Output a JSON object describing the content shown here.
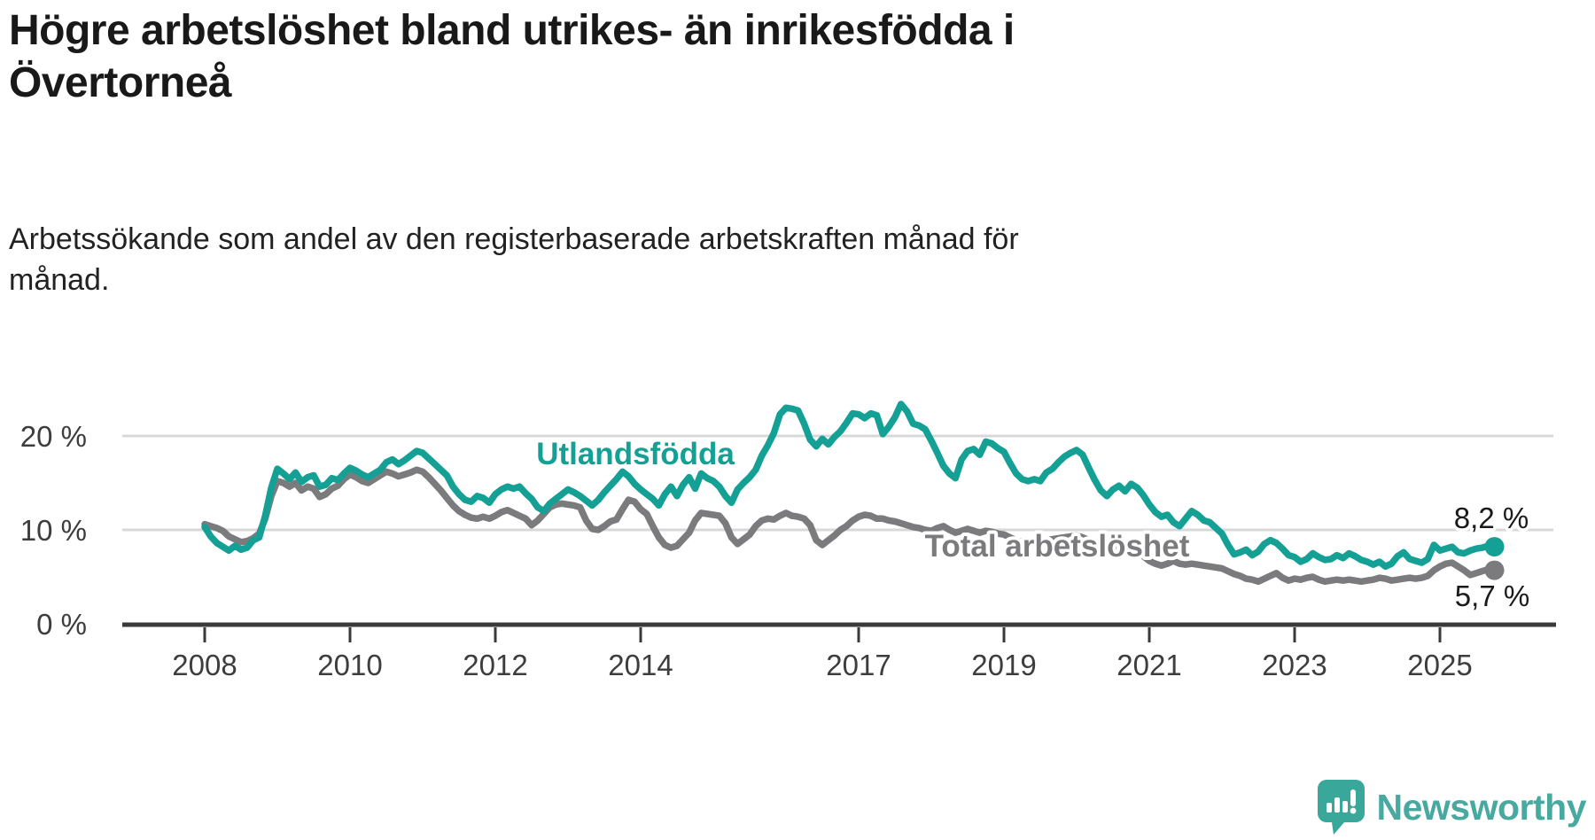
{
  "header": {
    "title": "Högre arbetslöshet bland utrikes- än inrikesfödda i Övertorneå",
    "subtitle": "Arbetssökande som andel av den registerbaserade arbetskraften månad för månad."
  },
  "footer": {
    "brand": "Newsworthy",
    "icon": "bar-chart-exclamation-speech-bubble"
  },
  "colors": {
    "foreign_born": "#14a095",
    "total": "#7b7b7d",
    "axis": "#3a3a3a",
    "tick_text": "#3d3d3d",
    "gridline": "#d8d8d8",
    "end_label_text": "#1a1a1a",
    "logo_icon": "#3aa79b",
    "logo_text": "#48a9a0"
  },
  "chart_data": {
    "type": "line",
    "title": "Högre arbetslöshet bland utrikes- än inrikesfödda i Övertorneå",
    "subtitle": "Arbetssökande som andel av den registerbaserade arbetskraften månad för månad.",
    "xlabel": "",
    "ylabel": "",
    "grid": "horizontal-only",
    "legend_position": "inline-labels",
    "x_ticks": [
      2008,
      2010,
      2012,
      2014,
      2017,
      2019,
      2021,
      2023,
      2025
    ],
    "y_ticks": [
      {
        "value": 0,
        "label": "0 %"
      },
      {
        "value": 10,
        "label": "10 %"
      },
      {
        "value": 20,
        "label": "20 %"
      }
    ],
    "ylim": [
      0,
      26
    ],
    "xlim_years": [
      2008.0,
      2026.0
    ],
    "frequency": "monthly",
    "series": [
      {
        "name": "Total arbetslöshet",
        "inline_label": "Total arbetslöshet",
        "end_label": "5,7 %",
        "end_value": 5.7,
        "color": "#7b7b7d",
        "start_year": 2008,
        "values": [
          10.6,
          10.4,
          10.2,
          9.9,
          9.3,
          9.0,
          8.7,
          8.8,
          9.1,
          9.6,
          11.2,
          13.6,
          15.2,
          15.0,
          14.6,
          15.0,
          14.2,
          14.6,
          14.4,
          13.5,
          13.8,
          14.4,
          14.7,
          15.4,
          15.9,
          15.6,
          15.2,
          15.0,
          15.4,
          15.8,
          16.2,
          16.0,
          15.7,
          15.9,
          16.1,
          16.4,
          16.2,
          15.6,
          14.9,
          14.2,
          13.4,
          12.6,
          12.0,
          11.6,
          11.3,
          11.2,
          11.4,
          11.2,
          11.5,
          11.9,
          12.1,
          11.8,
          11.5,
          11.2,
          10.5,
          11.0,
          11.7,
          12.4,
          12.7,
          12.8,
          12.7,
          12.6,
          12.4,
          11.0,
          10.1,
          10.0,
          10.4,
          10.9,
          11.1,
          12.2,
          13.2,
          13.0,
          12.2,
          11.7,
          10.4,
          9.2,
          8.4,
          8.1,
          8.3,
          9.0,
          9.7,
          11.0,
          11.8,
          11.7,
          11.6,
          11.5,
          10.7,
          9.2,
          8.5,
          9.0,
          9.5,
          10.4,
          11.0,
          11.2,
          11.1,
          11.5,
          11.8,
          11.5,
          11.4,
          11.2,
          10.5,
          8.9,
          8.4,
          8.9,
          9.4,
          10.0,
          10.4,
          11.0,
          11.4,
          11.6,
          11.5,
          11.2,
          11.2,
          11.0,
          10.9,
          10.7,
          10.5,
          10.3,
          10.2,
          10.0,
          9.9,
          10.2,
          10.4,
          10.0,
          9.7,
          9.9,
          10.1,
          9.9,
          9.7,
          9.9,
          9.8,
          9.6,
          9.5,
          9.2,
          8.9,
          8.7,
          8.6,
          8.7,
          8.8,
          8.9,
          9.0,
          9.1,
          9.2,
          9.3,
          9.4,
          9.2,
          8.9,
          8.6,
          8.3,
          8.1,
          8.2,
          8.3,
          8.1,
          8.0,
          7.7,
          7.2,
          6.7,
          6.4,
          6.2,
          6.4,
          6.7,
          6.4,
          6.3,
          6.4,
          6.3,
          6.2,
          6.1,
          6.0,
          5.9,
          5.6,
          5.3,
          5.1,
          4.8,
          4.7,
          4.5,
          4.8,
          5.1,
          5.4,
          4.9,
          4.6,
          4.8,
          4.7,
          4.9,
          5.0,
          4.7,
          4.5,
          4.6,
          4.7,
          4.6,
          4.7,
          4.6,
          4.5,
          4.6,
          4.7,
          4.9,
          4.8,
          4.6,
          4.7,
          4.8,
          4.9,
          4.8,
          4.9,
          5.1,
          5.7,
          6.1,
          6.4,
          6.5,
          6.1,
          5.7,
          5.2,
          5.4,
          5.6,
          5.8,
          5.7
        ]
      },
      {
        "name": "Utlandsfödda",
        "inline_label": "Utlandsfödda",
        "end_label": "8,2 %",
        "end_value": 8.2,
        "color": "#14a095",
        "start_year": 2008,
        "values": [
          10.3,
          9.3,
          8.6,
          8.2,
          7.8,
          8.3,
          7.9,
          8.1,
          8.9,
          9.2,
          11.5,
          14.5,
          16.5,
          16.0,
          15.4,
          16.1,
          15.1,
          15.6,
          15.8,
          14.6,
          14.8,
          15.5,
          15.3,
          16.0,
          16.6,
          16.3,
          15.9,
          15.6,
          16.0,
          16.4,
          17.2,
          17.5,
          17.0,
          17.4,
          17.9,
          18.4,
          18.2,
          17.6,
          17.0,
          16.4,
          15.8,
          14.6,
          13.8,
          13.2,
          13.0,
          13.6,
          13.4,
          12.9,
          13.8,
          14.3,
          14.6,
          14.4,
          14.6,
          13.9,
          13.3,
          12.4,
          12.0,
          12.8,
          13.3,
          13.8,
          14.3,
          14.0,
          13.6,
          13.1,
          12.6,
          13.2,
          14.0,
          14.7,
          15.4,
          16.2,
          15.7,
          14.9,
          14.3,
          13.8,
          13.3,
          12.6,
          13.8,
          14.6,
          13.6,
          14.8,
          15.6,
          14.4,
          16.0,
          15.5,
          15.2,
          14.6,
          13.6,
          12.9,
          14.3,
          15.0,
          15.6,
          16.4,
          17.9,
          19.0,
          20.3,
          22.3,
          23.0,
          22.9,
          22.7,
          21.3,
          19.6,
          18.9,
          19.7,
          19.1,
          19.9,
          20.5,
          21.4,
          22.4,
          22.3,
          21.9,
          22.4,
          22.2,
          20.2,
          21.0,
          22.0,
          23.4,
          22.6,
          21.3,
          21.1,
          20.7,
          19.5,
          18.2,
          16.8,
          16.0,
          15.5,
          17.5,
          18.4,
          18.6,
          18.0,
          19.4,
          19.2,
          18.7,
          18.3,
          17.1,
          16.0,
          15.4,
          15.2,
          15.4,
          15.2,
          16.1,
          16.5,
          17.2,
          17.8,
          18.2,
          18.5,
          18.0,
          16.6,
          15.3,
          14.2,
          13.6,
          14.3,
          14.7,
          14.1,
          14.9,
          14.5,
          13.7,
          12.7,
          11.9,
          11.4,
          11.6,
          10.8,
          10.4,
          11.2,
          12.0,
          11.6,
          11.0,
          10.8,
          10.2,
          9.6,
          8.4,
          7.4,
          7.6,
          7.9,
          7.3,
          7.7,
          8.5,
          8.9,
          8.6,
          8.0,
          7.3,
          7.1,
          6.6,
          6.9,
          7.5,
          7.1,
          6.8,
          6.9,
          7.3,
          7.0,
          7.5,
          7.2,
          6.8,
          6.6,
          6.3,
          6.6,
          6.1,
          6.4,
          7.2,
          7.6,
          6.9,
          6.7,
          6.5,
          6.9,
          8.4,
          7.8,
          8.0,
          8.2,
          7.6,
          7.5,
          7.8,
          8.0,
          8.1,
          8.3,
          8.2
        ]
      }
    ]
  }
}
